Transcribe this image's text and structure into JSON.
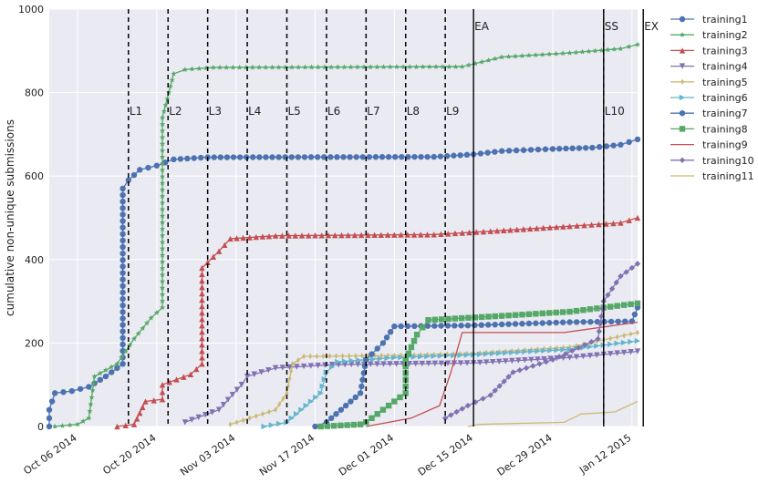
{
  "chart_data": {
    "type": "line",
    "ylabel": "cumulative non-unique submissions",
    "xlabel": "",
    "ylim": [
      0,
      1000
    ],
    "xlim": [
      "2014-10-01",
      "2015-01-13"
    ],
    "grid": true,
    "legend_position": "right",
    "yticks": [
      0,
      200,
      400,
      600,
      800,
      1000
    ],
    "xticks": [
      {
        "date": "2014-10-06",
        "label": "Oct 06 2014"
      },
      {
        "date": "2014-10-20",
        "label": "Oct 20 2014"
      },
      {
        "date": "2014-11-03",
        "label": "Nov 03 2014"
      },
      {
        "date": "2014-11-17",
        "label": "Nov 17 2014"
      },
      {
        "date": "2014-12-01",
        "label": "Dec 01 2014"
      },
      {
        "date": "2014-12-15",
        "label": "Dec 15 2014"
      },
      {
        "date": "2014-12-29",
        "label": "Dec 29 2014"
      },
      {
        "date": "2015-01-12",
        "label": "Jan 12 2015"
      }
    ],
    "markers": [
      {
        "date": "2014-10-15",
        "label": "L1",
        "style": "dashed"
      },
      {
        "date": "2014-10-22",
        "label": "L2",
        "style": "dashed"
      },
      {
        "date": "2014-10-29",
        "label": "L3",
        "style": "dashed"
      },
      {
        "date": "2014-11-05",
        "label": "L4",
        "style": "dashed"
      },
      {
        "date": "2014-11-12",
        "label": "L5",
        "style": "dashed"
      },
      {
        "date": "2014-11-19",
        "label": "L6",
        "style": "dashed"
      },
      {
        "date": "2014-11-26",
        "label": "L7",
        "style": "dashed"
      },
      {
        "date": "2014-12-03",
        "label": "L8",
        "style": "dashed"
      },
      {
        "date": "2014-12-10",
        "label": "L9",
        "style": "dashed"
      },
      {
        "date": "2014-12-15",
        "label": "EA",
        "style": "solid"
      },
      {
        "date": "2015-01-07",
        "label": "L10",
        "style": "dashed"
      },
      {
        "date": "2015-01-07",
        "label": "SS",
        "style": "solid"
      },
      {
        "date": "2015-01-14",
        "label": "EX",
        "style": "solid"
      }
    ],
    "series": [
      {
        "name": "training1",
        "color": "#4c72b0",
        "marker": "circle",
        "points": [
          [
            "2014-10-01",
            0
          ],
          [
            "2014-10-01",
            40
          ],
          [
            "2014-10-02",
            80
          ],
          [
            "2014-10-05",
            85
          ],
          [
            "2014-10-08",
            95
          ],
          [
            "2014-10-11",
            120
          ],
          [
            "2014-10-14",
            150
          ],
          [
            "2014-10-14",
            570
          ],
          [
            "2014-10-15",
            590
          ],
          [
            "2014-10-17",
            615
          ],
          [
            "2014-10-20",
            625
          ],
          [
            "2014-10-23",
            640
          ],
          [
            "2014-10-29",
            645
          ],
          [
            "2014-12-08",
            646
          ],
          [
            "2014-12-15",
            652
          ],
          [
            "2014-12-20",
            660
          ],
          [
            "2014-12-29",
            665
          ],
          [
            "2015-01-05",
            668
          ],
          [
            "2015-01-10",
            675
          ],
          [
            "2015-01-13",
            688
          ]
        ]
      },
      {
        "name": "training2",
        "color": "#55a868",
        "marker": "star",
        "points": [
          [
            "2014-10-02",
            0
          ],
          [
            "2014-10-06",
            5
          ],
          [
            "2014-10-08",
            20
          ],
          [
            "2014-10-09",
            120
          ],
          [
            "2014-10-13",
            150
          ],
          [
            "2014-10-16",
            210
          ],
          [
            "2014-10-19",
            260
          ],
          [
            "2014-10-21",
            285
          ],
          [
            "2014-10-21",
            740
          ],
          [
            "2014-10-23",
            845
          ],
          [
            "2014-10-25",
            855
          ],
          [
            "2014-10-30",
            860
          ],
          [
            "2014-12-13",
            862
          ],
          [
            "2014-12-20",
            885
          ],
          [
            "2015-01-01",
            895
          ],
          [
            "2015-01-10",
            905
          ],
          [
            "2015-01-13",
            915
          ]
        ]
      },
      {
        "name": "training3",
        "color": "#c44e52",
        "marker": "triangle-up",
        "points": [
          [
            "2014-10-13",
            0
          ],
          [
            "2014-10-16",
            5
          ],
          [
            "2014-10-18",
            60
          ],
          [
            "2014-10-21",
            65
          ],
          [
            "2014-10-21",
            100
          ],
          [
            "2014-10-26",
            125
          ],
          [
            "2014-10-28",
            150
          ],
          [
            "2014-10-28",
            380
          ],
          [
            "2014-10-31",
            420
          ],
          [
            "2014-11-02",
            450
          ],
          [
            "2014-11-10",
            457
          ],
          [
            "2014-12-08",
            460
          ],
          [
            "2014-12-18",
            468
          ],
          [
            "2015-01-01",
            480
          ],
          [
            "2015-01-10",
            488
          ],
          [
            "2015-01-13",
            500
          ]
        ]
      },
      {
        "name": "training4",
        "color": "#8172b2",
        "marker": "triangle-down",
        "points": [
          [
            "2014-10-25",
            10
          ],
          [
            "2014-10-31",
            40
          ],
          [
            "2014-11-04",
            100
          ],
          [
            "2014-11-05",
            120
          ],
          [
            "2014-11-10",
            140
          ],
          [
            "2014-11-20",
            148
          ],
          [
            "2014-12-15",
            152
          ],
          [
            "2015-01-01",
            165
          ],
          [
            "2015-01-13",
            180
          ]
        ]
      },
      {
        "name": "training5",
        "color": "#ccb974",
        "marker": "diamond-thin",
        "points": [
          [
            "2014-11-02",
            5
          ],
          [
            "2014-11-10",
            40
          ],
          [
            "2014-11-12",
            80
          ],
          [
            "2014-11-13",
            150
          ],
          [
            "2014-11-15",
            168
          ],
          [
            "2014-12-01",
            170
          ],
          [
            "2014-12-15",
            175
          ],
          [
            "2015-01-01",
            190
          ],
          [
            "2015-01-13",
            225
          ]
        ]
      },
      {
        "name": "training6",
        "color": "#64b5cd",
        "marker": "triangle-right",
        "points": [
          [
            "2014-11-08",
            0
          ],
          [
            "2014-11-12",
            10
          ],
          [
            "2014-11-18",
            80
          ],
          [
            "2014-11-19",
            130
          ],
          [
            "2014-11-21",
            155
          ],
          [
            "2014-12-01",
            165
          ],
          [
            "2014-12-15",
            172
          ],
          [
            "2015-01-01",
            185
          ],
          [
            "2015-01-13",
            205
          ]
        ]
      },
      {
        "name": "training7",
        "color": "#4c72b0",
        "marker": "circle",
        "points": [
          [
            "2014-11-17",
            0
          ],
          [
            "2014-11-19",
            10
          ],
          [
            "2014-11-25",
            80
          ],
          [
            "2014-11-26",
            160
          ],
          [
            "2014-11-29",
            200
          ],
          [
            "2014-12-01",
            240
          ],
          [
            "2014-12-14",
            242
          ],
          [
            "2015-01-01",
            250
          ],
          [
            "2015-01-12",
            252
          ],
          [
            "2015-01-13",
            285
          ]
        ]
      },
      {
        "name": "training8",
        "color": "#55a868",
        "marker": "square",
        "points": [
          [
            "2014-11-18",
            0
          ],
          [
            "2014-11-25",
            5
          ],
          [
            "2014-11-26",
            10
          ],
          [
            "2014-12-03",
            80
          ],
          [
            "2014-12-03",
            160
          ],
          [
            "2014-12-05",
            220
          ],
          [
            "2014-12-07",
            255
          ],
          [
            "2014-12-20",
            265
          ],
          [
            "2015-01-01",
            275
          ],
          [
            "2015-01-13",
            295
          ]
        ]
      },
      {
        "name": "training9",
        "color": "#c44e52",
        "marker": "none",
        "points": [
          [
            "2014-11-26",
            0
          ],
          [
            "2014-12-04",
            20
          ],
          [
            "2014-12-09",
            50
          ],
          [
            "2014-12-11",
            130
          ],
          [
            "2014-12-13",
            225
          ],
          [
            "2014-12-31",
            225
          ],
          [
            "2015-01-13",
            250
          ]
        ]
      },
      {
        "name": "training10",
        "color": "#8172b2",
        "marker": "diamond",
        "points": [
          [
            "2014-12-10",
            20
          ],
          [
            "2014-12-14",
            50
          ],
          [
            "2014-12-18",
            75
          ],
          [
            "2014-12-22",
            130
          ],
          [
            "2014-12-29",
            160
          ],
          [
            "2015-01-06",
            210
          ],
          [
            "2015-01-07",
            300
          ],
          [
            "2015-01-10",
            360
          ],
          [
            "2015-01-13",
            390
          ]
        ]
      },
      {
        "name": "training11",
        "color": "#ccb974",
        "marker": "none",
        "points": [
          [
            "2014-12-14",
            0
          ],
          [
            "2014-12-16",
            5
          ],
          [
            "2014-12-31",
            10
          ],
          [
            "2015-01-03",
            30
          ],
          [
            "2015-01-09",
            35
          ],
          [
            "2015-01-13",
            60
          ]
        ]
      }
    ]
  }
}
